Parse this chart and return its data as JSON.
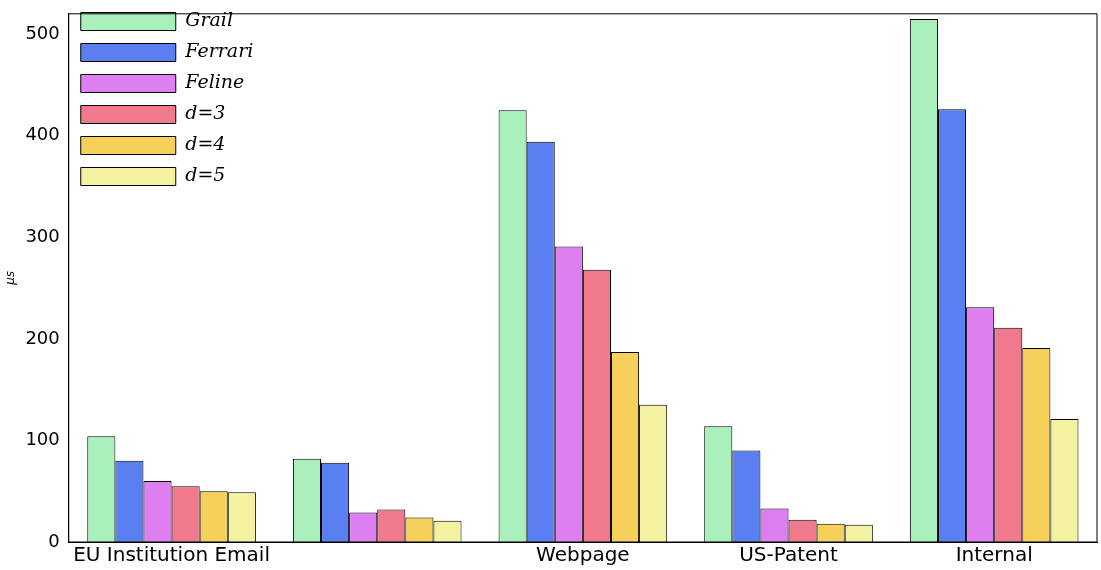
{
  "chart_data": {
    "type": "bar",
    "ylabel": "μs",
    "categories": [
      "EU Institution Email",
      null,
      "Webpage",
      "US-Patent",
      "Internal"
    ],
    "series": [
      {
        "name": "Grail",
        "color": "#aaf0bd",
        "values": [
          104,
          82,
          425,
          114,
          515
        ]
      },
      {
        "name": "Ferrari",
        "color": "#5a7ff0",
        "values": [
          80,
          78,
          394,
          90,
          426
        ]
      },
      {
        "name": "Feline",
        "color": "#dd7ff0",
        "values": [
          60,
          29,
          291,
          33,
          231
        ]
      },
      {
        "name": "d=3",
        "color": "#f0798e",
        "values": [
          55,
          32,
          268,
          22,
          211
        ]
      },
      {
        "name": "d=4",
        "color": "#f5d05a",
        "values": [
          50,
          24,
          187,
          18,
          191
        ]
      },
      {
        "name": "d=5",
        "color": "#f3f2a1",
        "values": [
          49,
          21,
          135,
          17,
          121
        ]
      }
    ],
    "ylim": [
      0,
      520
    ],
    "yticks": [
      0,
      100,
      200,
      300,
      400,
      500
    ],
    "grid": false,
    "legend": "top left"
  }
}
